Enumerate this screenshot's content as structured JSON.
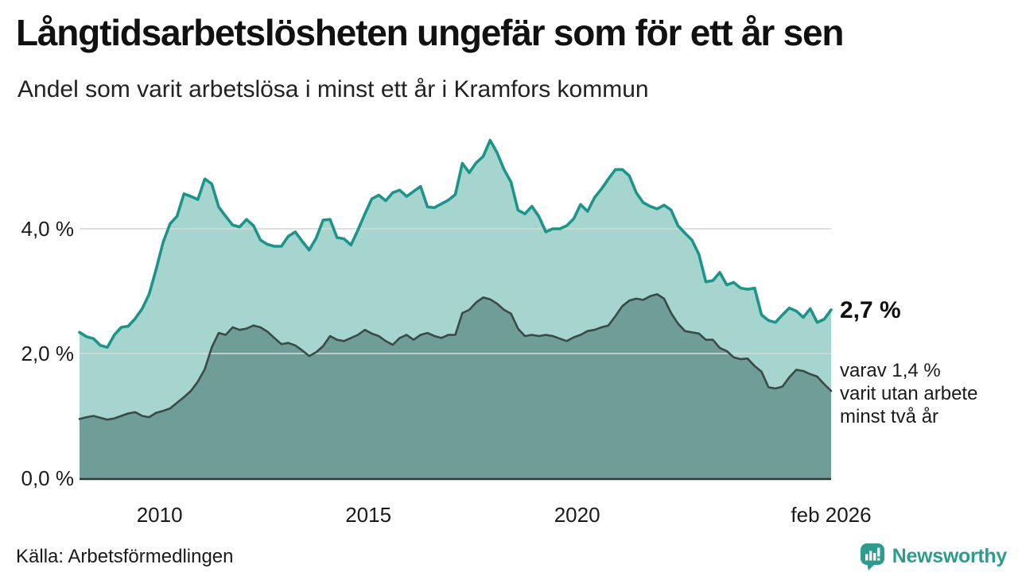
{
  "chart_data": {
    "type": "area",
    "title": "Långtidsarbetslösheten ungefär som för ett år sen",
    "subtitle": "Andel som varit arbetslösa i minst ett år i Kramfors kommun",
    "unit": "%",
    "x_start": 2008.083,
    "x_end": 2026.083,
    "points_per_year": 6,
    "x_ticks": [
      {
        "label": "2010",
        "year": 2010
      },
      {
        "label": "2015",
        "year": 2015
      },
      {
        "label": "2020",
        "year": 2020
      },
      {
        "label": "feb 2026",
        "year": 2026.083
      }
    ],
    "y_ticks": [
      {
        "label": "0,0 %",
        "value": 0
      },
      {
        "label": "2,0 %",
        "value": 2
      },
      {
        "label": "4,0 %",
        "value": 4
      }
    ],
    "ylim": [
      0,
      5.7
    ],
    "grid": "horizontal",
    "legend": "none",
    "series": [
      {
        "name": "Arbetslösa minst ett år",
        "line_color": "#1d9489",
        "fill_color": "#a5d5ce",
        "last_value_label": "2,7 %",
        "values": [
          2.34,
          2.27,
          2.24,
          2.13,
          2.1,
          2.3,
          2.42,
          2.44,
          2.56,
          2.72,
          2.95,
          3.35,
          3.78,
          4.08,
          4.2,
          4.56,
          4.52,
          4.47,
          4.8,
          4.72,
          4.35,
          4.2,
          4.06,
          4.03,
          4.15,
          4.05,
          3.82,
          3.75,
          3.72,
          3.72,
          3.88,
          3.95,
          3.8,
          3.66,
          3.85,
          4.14,
          4.15,
          3.86,
          3.84,
          3.74,
          3.98,
          4.24,
          4.48,
          4.54,
          4.45,
          4.58,
          4.62,
          4.52,
          4.6,
          4.68,
          4.35,
          4.34,
          4.4,
          4.46,
          4.55,
          5.05,
          4.9,
          5.06,
          5.16,
          5.42,
          5.22,
          4.95,
          4.75,
          4.3,
          4.24,
          4.36,
          4.2,
          3.95,
          4.0,
          4.0,
          4.05,
          4.16,
          4.39,
          4.28,
          4.5,
          4.64,
          4.8,
          4.95,
          4.95,
          4.85,
          4.58,
          4.42,
          4.36,
          4.32,
          4.38,
          4.3,
          4.05,
          3.93,
          3.82,
          3.59,
          3.15,
          3.17,
          3.3,
          3.1,
          3.14,
          3.05,
          3.03,
          3.05,
          2.62,
          2.53,
          2.5,
          2.62,
          2.73,
          2.68,
          2.58,
          2.72,
          2.5,
          2.55,
          2.7
        ]
      },
      {
        "name": "Arbetslösa minst två år",
        "line_color": "#3a4a45",
        "fill_color": "#6f9d98",
        "last_value_label": "1,4 %",
        "values": [
          0.95,
          0.98,
          1.0,
          0.97,
          0.94,
          0.96,
          1.0,
          1.04,
          1.06,
          1.0,
          0.98,
          1.05,
          1.08,
          1.12,
          1.21,
          1.3,
          1.4,
          1.55,
          1.75,
          2.1,
          2.33,
          2.3,
          2.42,
          2.38,
          2.4,
          2.45,
          2.42,
          2.35,
          2.25,
          2.15,
          2.17,
          2.13,
          2.05,
          1.96,
          2.02,
          2.12,
          2.28,
          2.22,
          2.2,
          2.25,
          2.3,
          2.38,
          2.32,
          2.28,
          2.2,
          2.14,
          2.25,
          2.3,
          2.22,
          2.3,
          2.33,
          2.28,
          2.25,
          2.3,
          2.3,
          2.65,
          2.7,
          2.82,
          2.9,
          2.87,
          2.8,
          2.7,
          2.64,
          2.4,
          2.28,
          2.3,
          2.28,
          2.3,
          2.28,
          2.24,
          2.2,
          2.26,
          2.3,
          2.36,
          2.38,
          2.42,
          2.45,
          2.6,
          2.76,
          2.85,
          2.88,
          2.86,
          2.92,
          2.95,
          2.88,
          2.65,
          2.48,
          2.36,
          2.34,
          2.32,
          2.22,
          2.22,
          2.09,
          2.04,
          1.94,
          1.91,
          1.92,
          1.8,
          1.71,
          1.46,
          1.44,
          1.47,
          1.62,
          1.74,
          1.72,
          1.67,
          1.63,
          1.51,
          1.4
        ]
      }
    ],
    "annotation": {
      "primary": "2,7 %",
      "secondary_lines": [
        "varav 1,4 %",
        "varit utan arbete",
        "minst två år"
      ]
    },
    "grid_color": "#d5dad9",
    "axis_color": "#2e3836"
  },
  "footer": {
    "source": "Källa: Arbetsförmedlingen",
    "brand": "Newsworthy",
    "brand_color": "#2e9c8c"
  }
}
